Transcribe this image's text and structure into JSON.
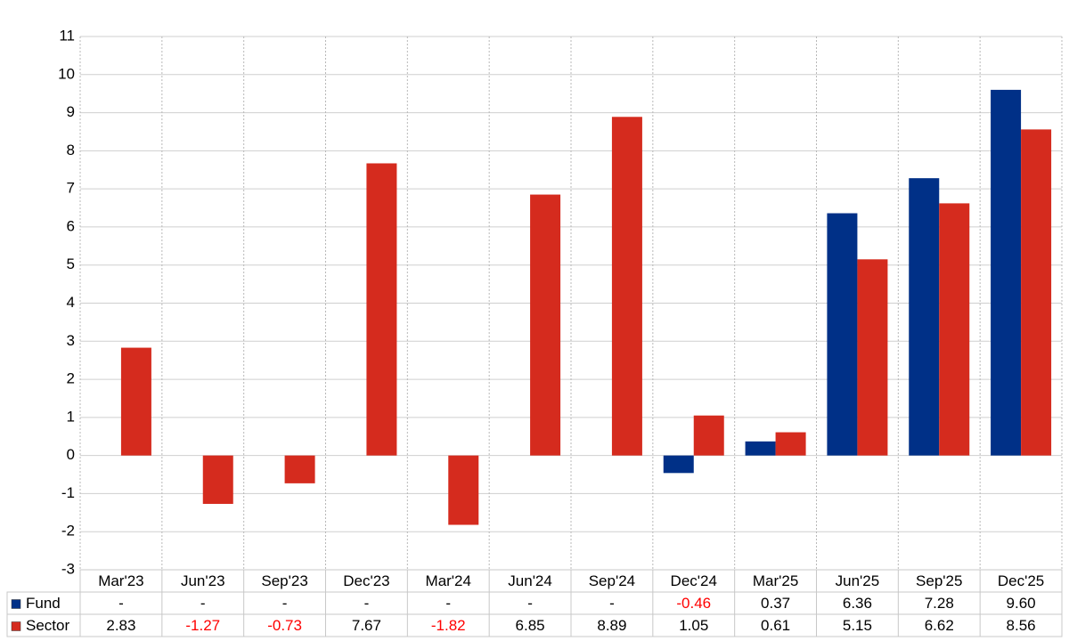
{
  "chart_data": {
    "type": "bar",
    "categories": [
      "Mar'23",
      "Jun'23",
      "Sep'23",
      "Dec'23",
      "Mar'24",
      "Jun'24",
      "Sep'24",
      "Dec'24",
      "Mar'25",
      "Jun'25",
      "Sep'25",
      "Dec'25"
    ],
    "series": [
      {
        "name": "Fund",
        "color": "#003087",
        "values": [
          null,
          null,
          null,
          null,
          null,
          null,
          null,
          -0.46,
          0.37,
          6.36,
          7.28,
          9.6
        ],
        "value_labels": [
          "-",
          "-",
          "-",
          "-",
          "-",
          "-",
          "-",
          "-0.46",
          "0.37",
          "6.36",
          "7.28",
          "9.60"
        ]
      },
      {
        "name": "Sector",
        "color": "#d52b1e",
        "values": [
          2.83,
          -1.27,
          -0.73,
          7.67,
          -1.82,
          6.85,
          8.89,
          1.05,
          0.61,
          5.15,
          6.62,
          8.56
        ],
        "value_labels": [
          "2.83",
          "-1.27",
          "-0.73",
          "7.67",
          "-1.82",
          "6.85",
          "8.89",
          "1.05",
          "0.61",
          "5.15",
          "6.62",
          "8.56"
        ]
      }
    ],
    "ylim": [
      -3,
      11
    ],
    "yticks": [
      -3,
      -2,
      -1,
      0,
      1,
      2,
      3,
      4,
      5,
      6,
      7,
      8,
      9,
      10,
      11
    ],
    "grid": true,
    "negative_label_color": "#ff0000"
  }
}
